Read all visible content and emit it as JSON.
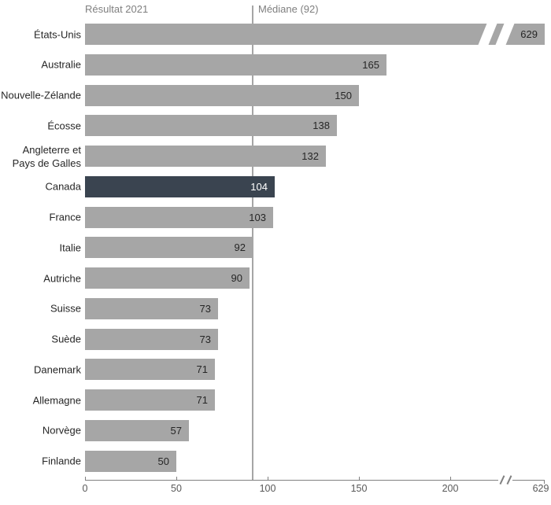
{
  "chart_data": {
    "type": "bar",
    "orientation": "horizontal",
    "title": "",
    "header": {
      "series_label": "Résultat 2021",
      "median_label": "Médiane (92)"
    },
    "median_value": 92,
    "categories": [
      "États-Unis",
      "Australie",
      "Nouvelle-Zélande",
      "Écosse",
      "Angleterre et Pays de Galles",
      "Canada",
      "France",
      "Italie",
      "Autriche",
      "Suisse",
      "Suède",
      "Danemark",
      "Allemagne",
      "Norvège",
      "Finlande"
    ],
    "values": [
      629,
      165,
      150,
      138,
      132,
      104,
      103,
      92,
      90,
      73,
      73,
      71,
      71,
      57,
      50
    ],
    "bars": [
      {
        "label": "États-Unis",
        "value": 629,
        "clamped": true
      },
      {
        "label": "Australie",
        "value": 165
      },
      {
        "label": "Nouvelle-Zélande",
        "value": 150
      },
      {
        "label": "Écosse",
        "value": 138
      },
      {
        "label": "Angleterre et\nPays de Galles",
        "value": 132
      },
      {
        "label": "Canada",
        "value": 104,
        "highlight": true
      },
      {
        "label": "France",
        "value": 103
      },
      {
        "label": "Italie",
        "value": 92
      },
      {
        "label": "Autriche",
        "value": 90
      },
      {
        "label": "Suisse",
        "value": 73
      },
      {
        "label": "Suède",
        "value": 73
      },
      {
        "label": "Danemark",
        "value": 71
      },
      {
        "label": "Allemagne",
        "value": 71
      },
      {
        "label": "Norvège",
        "value": 57
      },
      {
        "label": "Finlande",
        "value": 50
      }
    ],
    "axis": {
      "ticks": [
        0,
        50,
        100,
        150,
        200
      ],
      "axis_break_after": 200,
      "end_label": "629",
      "xlim_display": [
        0,
        252
      ]
    },
    "grid": false,
    "legend": "none",
    "colors": {
      "bar": "#a6a6a6",
      "highlight": "#3a4450",
      "value_text": "#262626",
      "highlight_value_text": "#ffffff",
      "label_text": "#262626",
      "header_text": "#7f7f7f",
      "axis_text": "#595959",
      "axis_line": "#808080",
      "median_line": "#a6a6a6"
    }
  }
}
